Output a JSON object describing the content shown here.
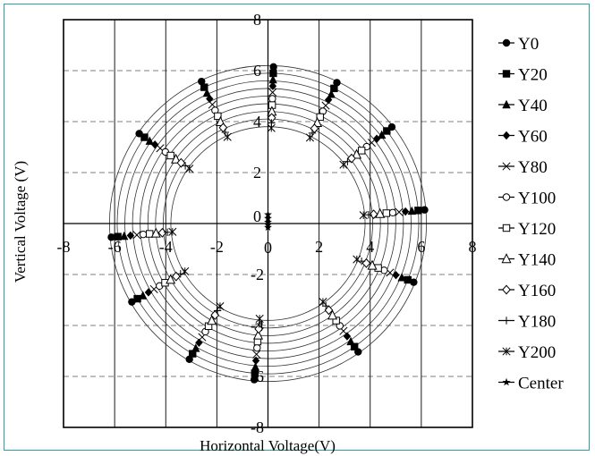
{
  "chart_data": {
    "type": "scatter",
    "title": "",
    "xlabel": "Horizontal Voltage(V)",
    "ylabel": "Vertical Voltage (V)",
    "xlim": [
      -8,
      8
    ],
    "ylim": [
      -8,
      8
    ],
    "xticks": [
      -8,
      -6,
      -4,
      -2,
      0,
      2,
      4,
      6,
      8
    ],
    "yticks": [
      -8,
      -6,
      -4,
      -2,
      0,
      2,
      4,
      6,
      8
    ],
    "grid": "horizontal dashed",
    "legend_position": "right",
    "circle_radii": [
      3.8,
      4.1,
      4.4,
      4.7,
      5.0,
      5.3,
      5.6,
      5.9,
      6.2
    ],
    "angles_deg": [
      88,
      64,
      38,
      5,
      -22,
      -55,
      -95,
      -120,
      -150,
      -175,
      145,
      115
    ],
    "series": [
      {
        "name": "Y0",
        "marker": "circle-filled",
        "radius": 6.15
      },
      {
        "name": "Y20",
        "marker": "square-filled",
        "radius": 5.9
      },
      {
        "name": "Y40",
        "marker": "triangle-filled",
        "radius": 5.65
      },
      {
        "name": "Y60",
        "marker": "diamond-filled",
        "radius": 5.4
      },
      {
        "name": "Y80",
        "marker": "x",
        "radius": 5.15
      },
      {
        "name": "Y100",
        "marker": "circle-open",
        "radius": 4.9
      },
      {
        "name": "Y120",
        "marker": "square-open",
        "radius": 4.65
      },
      {
        "name": "Y140",
        "marker": "triangle-open",
        "radius": 4.4
      },
      {
        "name": "Y160",
        "marker": "diamond-open",
        "radius": 4.15
      },
      {
        "name": "Y180",
        "marker": "plus",
        "radius": 3.95
      },
      {
        "name": "Y200",
        "marker": "star-x",
        "radius": 3.75
      },
      {
        "name": "Center",
        "marker": "star-filled",
        "points": [
          [
            0,
            0.35
          ],
          [
            0,
            0.2
          ],
          [
            0,
            0.05
          ],
          [
            0,
            -0.05
          ],
          [
            0,
            -0.15
          ]
        ]
      }
    ]
  }
}
